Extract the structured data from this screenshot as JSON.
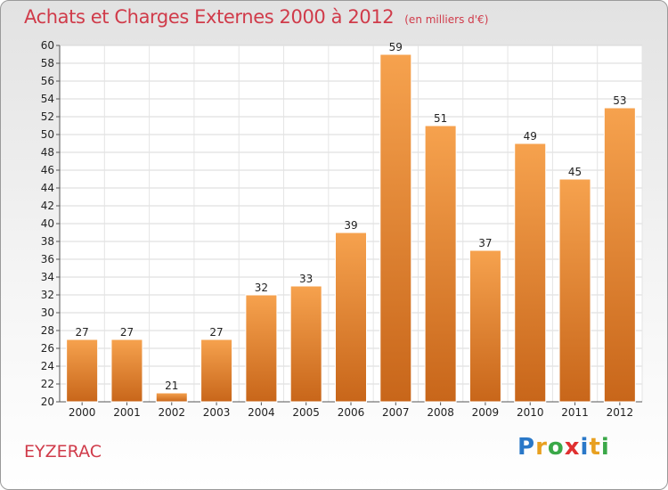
{
  "header": {
    "title": "Achats et Charges Externes 2000 à 2012",
    "unit": "(en milliers d'€)"
  },
  "footer": {
    "place": "EYZERAC",
    "logo_letters": [
      "P",
      "r",
      "o",
      "x",
      "i",
      "t",
      "i"
    ],
    "logo_colors": [
      "#2a78c8",
      "#e8a020",
      "#3aa848",
      "#e03030",
      "#2a78c8",
      "#e8a020",
      "#3aa848"
    ]
  },
  "chart_data": {
    "type": "bar",
    "categories": [
      "2000",
      "2001",
      "2002",
      "2003",
      "2004",
      "2005",
      "2006",
      "2007",
      "2008",
      "2009",
      "2010",
      "2011",
      "2012"
    ],
    "values": [
      27,
      27,
      21,
      27,
      32,
      33,
      39,
      59,
      51,
      37,
      49,
      45,
      53
    ],
    "title": "Achats et Charges Externes 2000 à 2012",
    "ylim": [
      20,
      60
    ],
    "ytick_step": 2,
    "grid": true,
    "bar_color_top": "#f6a24e",
    "bar_color_bottom": "#c8661a"
  }
}
